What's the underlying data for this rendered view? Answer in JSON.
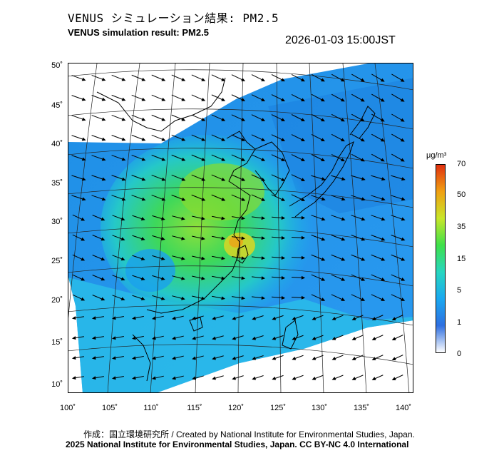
{
  "header": {
    "title_jp": "VENUS シミュレーション結果: PM2.5",
    "title_en": "VENUS simulation result: PM2.5",
    "timestamp": "2026-01-03 15:00JST"
  },
  "map": {
    "lat_labels": [
      "50˚",
      "45˚",
      "40˚",
      "35˚",
      "30˚",
      "25˚",
      "20˚",
      "15˚",
      "10˚"
    ],
    "lon_labels": [
      "100˚",
      "105˚",
      "110˚",
      "115˚",
      "120˚",
      "125˚",
      "130˚",
      "135˚",
      "140˚"
    ]
  },
  "colorbar": {
    "unit": "μg/m³",
    "ticks": [
      "70",
      "50",
      "35",
      "15",
      "5",
      "1",
      "0"
    ],
    "colors": [
      "#ffffff",
      "#2e6fe0",
      "#1aa8f0",
      "#27d6c0",
      "#3ee04a",
      "#c8e62a",
      "#f0a012",
      "#e03010"
    ]
  },
  "footer": {
    "credit_line": "作成：国立環境研究所 / Created by National Institute for Environmental Studies, Japan.",
    "copyright_line": "2025 National Institute for Environmental Studies, Japan. CC BY-NC 4.0 International"
  }
}
